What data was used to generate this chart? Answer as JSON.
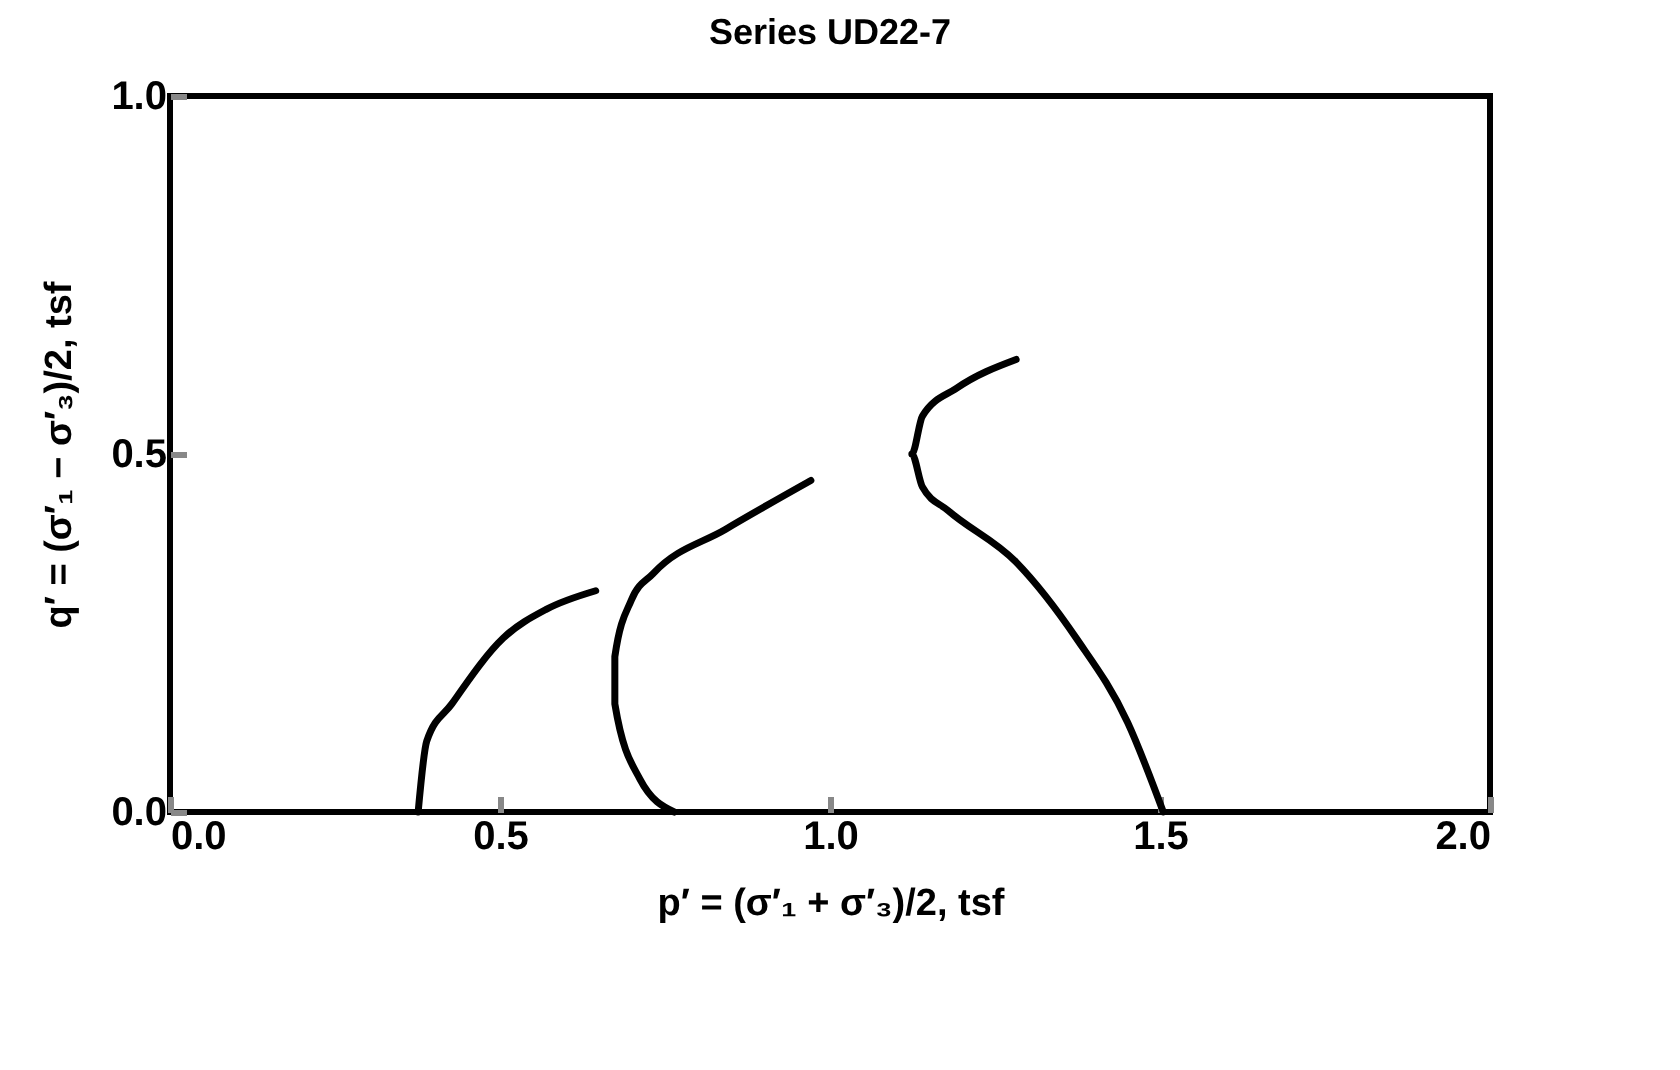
{
  "chart_data": {
    "type": "line",
    "title": "Series UD22-7",
    "xlabel": "p′ = (σ′₁ + σ′₃)/2, tsf",
    "ylabel": "q′ = (σ′₁ − σ′₃)/2, tsf",
    "xlim": [
      0,
      2
    ],
    "ylim": [
      0,
      1
    ],
    "xticks": [
      {
        "value": 0,
        "label": "0.0"
      },
      {
        "value": 0.5,
        "label": "0.5"
      },
      {
        "value": 1,
        "label": "1.0"
      },
      {
        "value": 1.5,
        "label": "1.5"
      },
      {
        "value": 2,
        "label": "2.0"
      }
    ],
    "yticks": [
      {
        "value": 0,
        "label": "0.0"
      },
      {
        "value": 0.5,
        "label": "0.5"
      },
      {
        "value": 1,
        "label": "1.0"
      }
    ],
    "legend": false,
    "grid": false,
    "marker": "none",
    "line_style": "solid",
    "series": [
      {
        "color": "#000000",
        "x": [
          0.376,
          0.389,
          0.427,
          0.505,
          0.57,
          0.645
        ],
        "values": [
          0,
          0.099,
          0.151,
          0.243,
          0.283,
          0.309
        ]
      },
      {
        "color": "#000000",
        "x": [
          0.764,
          0.712,
          0.674,
          0.674,
          0.699,
          0.732,
          0.842,
          0.971
        ],
        "values": [
          0,
          0.046,
          0.151,
          0.217,
          0.296,
          0.333,
          0.395,
          0.463
        ]
      },
      {
        "color": "#000000",
        "x": [
          1.505,
          1.451,
          1.373,
          1.282,
          1.179,
          1.14,
          1.124,
          1.14,
          1.192,
          1.282
        ],
        "values": [
          0,
          0.125,
          0.243,
          0.349,
          0.421,
          0.454,
          0.5,
          0.553,
          0.592,
          0.632
        ]
      }
    ]
  }
}
